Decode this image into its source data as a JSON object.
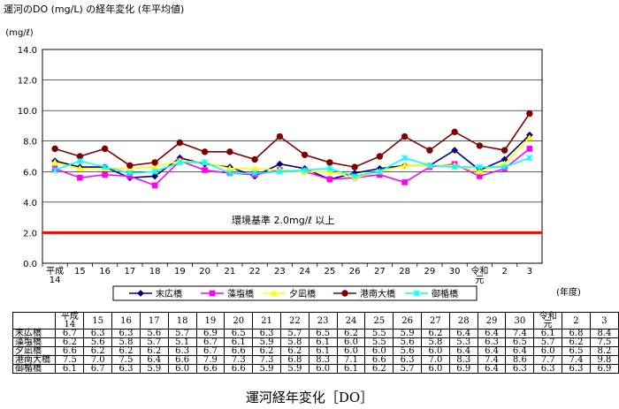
{
  "title": "運河のDO (mg/L) の経年変化 (年平均値)",
  "caption": "運河経年変化［DO］",
  "chart_data": {
    "type": "line",
    "title": "運河のDO (mg/L) の経年変化 (年平均値)",
    "ylabel": "(mg/ℓ)",
    "xlabel": "(年度)",
    "ylim": [
      0,
      14
    ],
    "yticks": [
      "0.0",
      "2.0",
      "4.0",
      "6.0",
      "8.0",
      "10.0",
      "12.0",
      "14.0"
    ],
    "grid": true,
    "legend_position": "bottom",
    "categories": [
      "平成14",
      "15",
      "16",
      "17",
      "18",
      "19",
      "20",
      "21",
      "22",
      "23",
      "24",
      "25",
      "26",
      "27",
      "28",
      "29",
      "30",
      "令和元",
      "2",
      "3"
    ],
    "x_tick_labels": [
      [
        "平成",
        "14"
      ],
      [
        "15"
      ],
      [
        "16"
      ],
      [
        "17"
      ],
      [
        "18"
      ],
      [
        "19"
      ],
      [
        "20"
      ],
      [
        "21"
      ],
      [
        "22"
      ],
      [
        "23"
      ],
      [
        "24"
      ],
      [
        "25"
      ],
      [
        "26"
      ],
      [
        "27"
      ],
      [
        "28"
      ],
      [
        "29"
      ],
      [
        "30"
      ],
      [
        "令和",
        "元"
      ],
      [
        "2"
      ],
      [
        "3"
      ]
    ],
    "reference_line": {
      "value": 2.0,
      "label": "環境基準 2.0mg/ℓ 以上",
      "color": "#ff0000"
    },
    "series": [
      {
        "name": "末広橋",
        "color": "#000080",
        "marker": "diamond",
        "values": [
          6.7,
          6.3,
          6.3,
          5.6,
          5.7,
          6.9,
          6.5,
          6.3,
          5.7,
          6.5,
          6.2,
          5.5,
          5.9,
          6.2,
          6.4,
          6.4,
          7.4,
          6.1,
          6.8,
          8.4
        ]
      },
      {
        "name": "藻塩橋",
        "color": "#ff00ff",
        "marker": "square",
        "values": [
          6.2,
          5.6,
          5.8,
          5.7,
          5.1,
          6.7,
          6.1,
          5.9,
          5.8,
          6.1,
          6.0,
          5.5,
          5.6,
          5.8,
          5.3,
          6.3,
          6.5,
          5.7,
          6.2,
          7.5
        ]
      },
      {
        "name": "夕凪橋",
        "color": "#ffff00",
        "marker": "triangle",
        "values": [
          6.6,
          6.2,
          6.2,
          6.2,
          6.3,
          6.7,
          6.6,
          6.2,
          6.2,
          6.1,
          6.0,
          6.0,
          5.6,
          6.0,
          6.4,
          6.4,
          6.4,
          6.0,
          6.5,
          8.2
        ]
      },
      {
        "name": "港南大橋",
        "color": "#800000",
        "marker": "circle",
        "values": [
          7.5,
          7.0,
          7.5,
          6.4,
          6.6,
          7.9,
          7.3,
          7.3,
          6.8,
          8.3,
          7.1,
          6.6,
          6.3,
          7.0,
          8.3,
          7.4,
          8.6,
          7.7,
          7.4,
          9.8
        ]
      },
      {
        "name": "御楯橋",
        "color": "#00ffff",
        "marker": "x",
        "values": [
          6.1,
          6.7,
          6.3,
          5.9,
          6.0,
          6.6,
          6.6,
          5.9,
          5.9,
          6.0,
          6.1,
          6.2,
          5.7,
          6.0,
          6.9,
          6.4,
          6.3,
          6.3,
          6.3,
          6.9
        ]
      }
    ]
  },
  "table": {
    "header": [
      "",
      "平成14",
      "15",
      "16",
      "17",
      "18",
      "19",
      "20",
      "21",
      "22",
      "23",
      "24",
      "25",
      "26",
      "27",
      "28",
      "29",
      "30",
      "令和元",
      "2",
      "3"
    ],
    "rows": [
      [
        "末広橋",
        "6.7",
        "6.3",
        "6.3",
        "5.6",
        "5.7",
        "6.9",
        "6.5",
        "6.3",
        "5.7",
        "6.5",
        "6.2",
        "5.5",
        "5.9",
        "6.2",
        "6.4",
        "6.4",
        "7.4",
        "6.1",
        "6.8",
        "8.4"
      ],
      [
        "藻塩橋",
        "6.2",
        "5.6",
        "5.8",
        "5.7",
        "5.1",
        "6.7",
        "6.1",
        "5.9",
        "5.8",
        "6.1",
        "6.0",
        "5.5",
        "5.6",
        "5.8",
        "5.3",
        "6.3",
        "6.5",
        "5.7",
        "6.2",
        "7.5"
      ],
      [
        "夕凪橋",
        "6.6",
        "6.2",
        "6.2",
        "6.2",
        "6.3",
        "6.7",
        "6.6",
        "6.2",
        "6.2",
        "6.1",
        "6.0",
        "6.0",
        "5.6",
        "6.0",
        "6.4",
        "6.4",
        "6.4",
        "6.0",
        "6.5",
        "8.2"
      ],
      [
        "港南大橋",
        "7.5",
        "7.0",
        "7.5",
        "6.4",
        "6.6",
        "7.9",
        "7.3",
        "7.3",
        "6.8",
        "8.3",
        "7.1",
        "6.6",
        "6.3",
        "7.0",
        "8.3",
        "7.4",
        "8.6",
        "7.7",
        "7.4",
        "9.8"
      ],
      [
        "御楯橋",
        "6.1",
        "6.7",
        "6.3",
        "5.9",
        "6.0",
        "6.6",
        "6.6",
        "5.9",
        "5.9",
        "6.0",
        "6.1",
        "6.2",
        "5.7",
        "6.0",
        "6.9",
        "6.4",
        "6.3",
        "6.3",
        "6.3",
        "6.9"
      ]
    ]
  }
}
